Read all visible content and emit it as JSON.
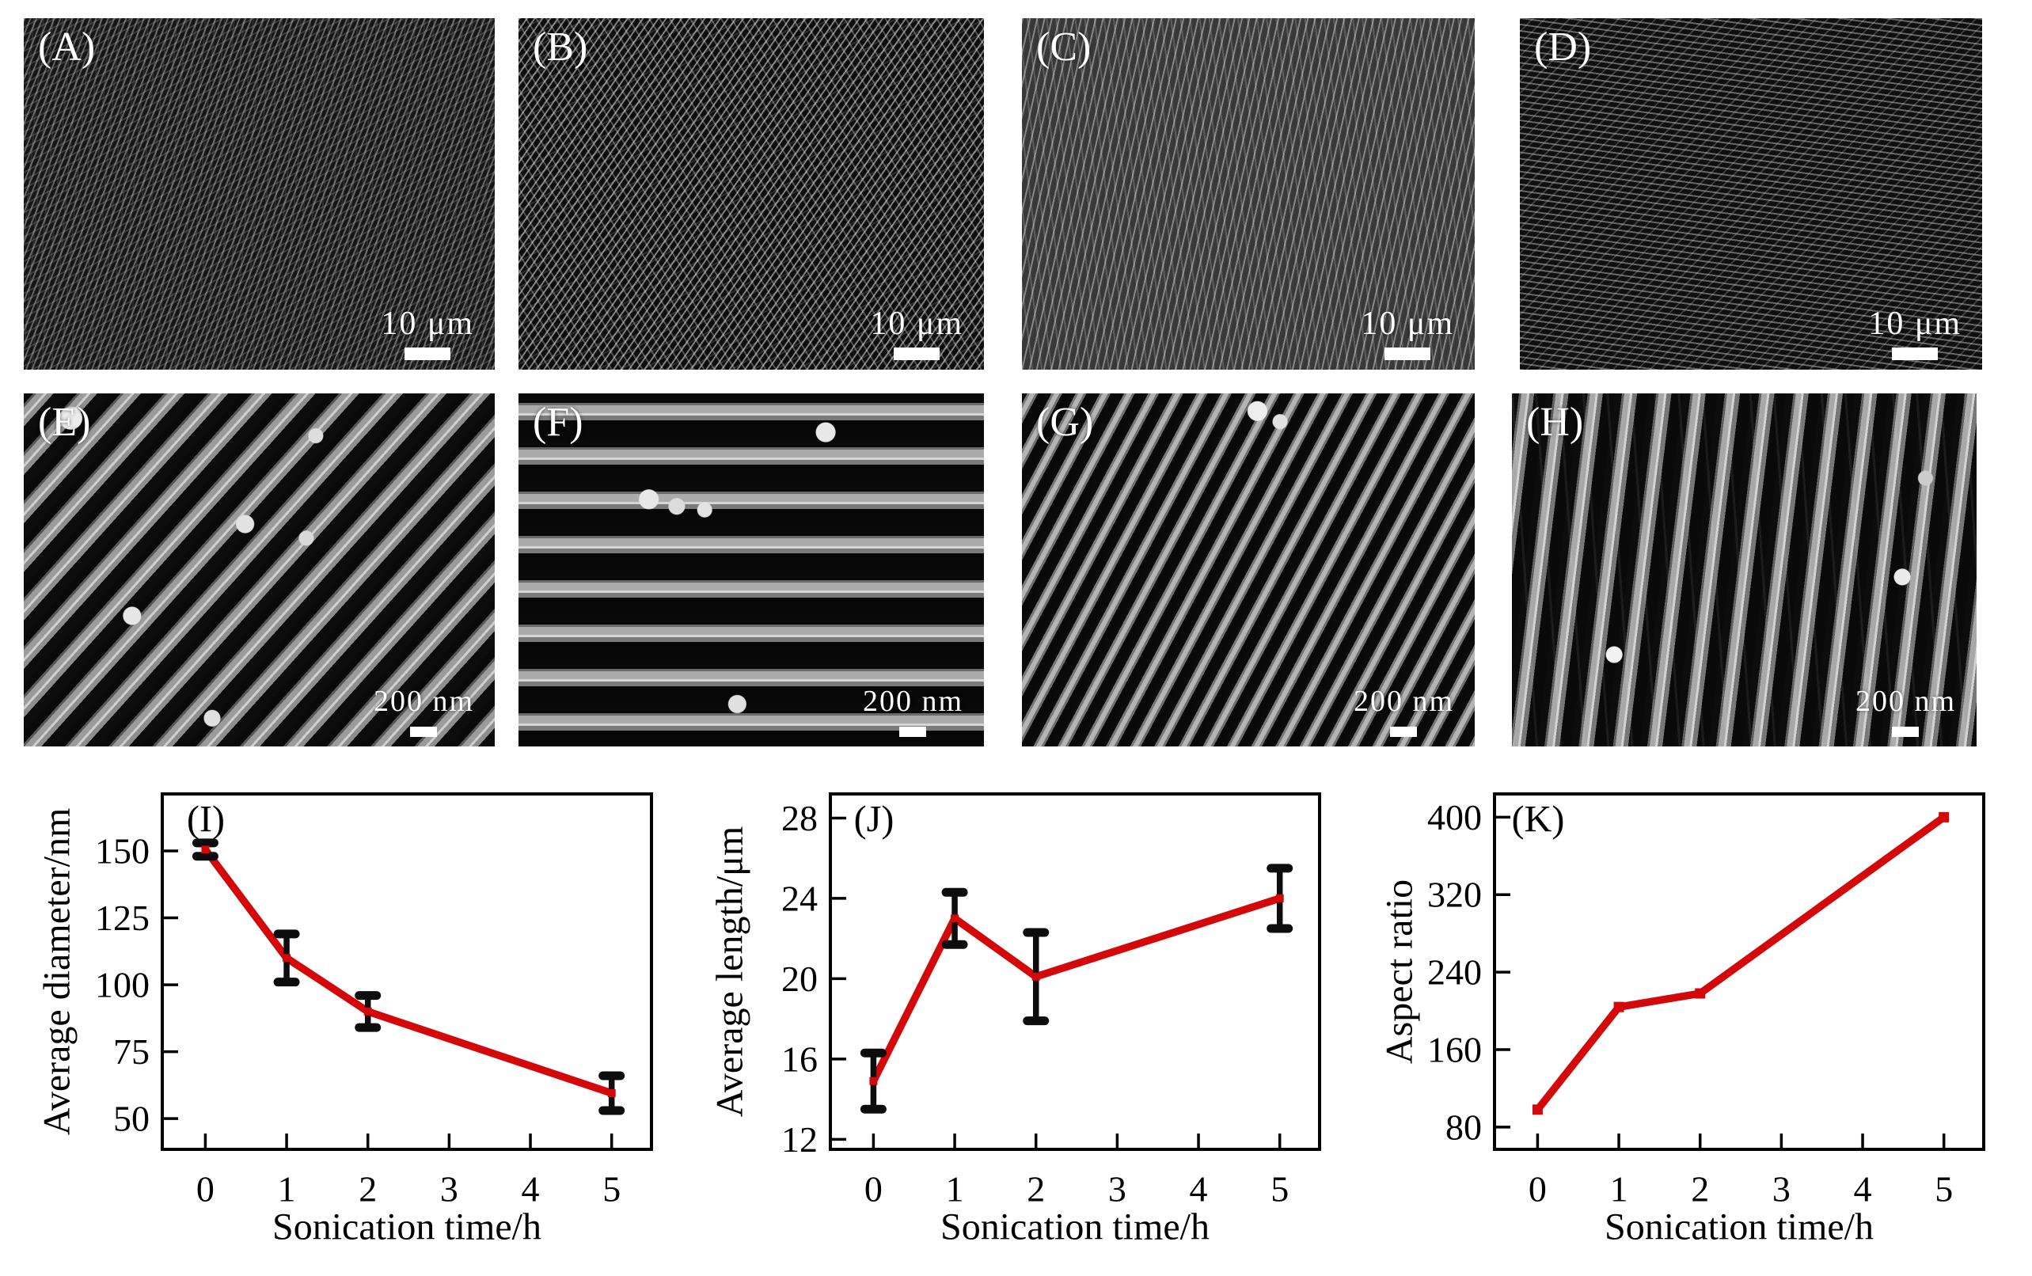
{
  "figure": {
    "background": "#ffffff",
    "sem_panels": [
      {
        "label": "(A)",
        "scale_text": "10 μm"
      },
      {
        "label": "(B)",
        "scale_text": "10 μm"
      },
      {
        "label": "(C)",
        "scale_text": "10 μm"
      },
      {
        "label": "(D)",
        "scale_text": "10 μm"
      },
      {
        "label": "(E)",
        "scale_text": "200 nm"
      },
      {
        "label": "(F)",
        "scale_text": "200 nm"
      },
      {
        "label": "(G)",
        "scale_text": "200 nm"
      },
      {
        "label": "(H)",
        "scale_text": "200 nm"
      }
    ]
  },
  "chart_data": [
    {
      "type": "line",
      "panel_label": "(I)",
      "xlabel": "Sonication time/h",
      "ylabel": "Average diameter/nm",
      "x": [
        0,
        1,
        2,
        5
      ],
      "y": [
        150.5,
        110,
        90,
        59.5
      ],
      "yerr": [
        2.5,
        9,
        6,
        6.5
      ],
      "xticks": [
        0,
        1,
        2,
        3,
        4,
        5
      ],
      "yticks": [
        50,
        75,
        100,
        125,
        150
      ],
      "xlim": [
        -0.53,
        5.49
      ],
      "ylim": [
        38.5,
        171.3
      ],
      "grid": false,
      "legend": null,
      "line_color": "#d40808",
      "error_color": "#0d0d0d",
      "marker": "square",
      "marker_size": 10
    },
    {
      "type": "line",
      "panel_label": "(J)",
      "xlabel": "Sonication time/h",
      "ylabel": "Average length/μm",
      "x": [
        0,
        1,
        2,
        5
      ],
      "y": [
        14.9,
        23,
        20.1,
        24
      ],
      "yerr": [
        1.4,
        1.3,
        2.2,
        1.5
      ],
      "xticks": [
        0,
        1,
        2,
        3,
        4,
        5
      ],
      "yticks": [
        12,
        16,
        20,
        24,
        28
      ],
      "xlim": [
        -0.53,
        5.49
      ],
      "ylim": [
        11.5,
        29.2
      ],
      "grid": false,
      "legend": null,
      "line_color": "#d40808",
      "error_color": "#0d0d0d",
      "marker": "square",
      "marker_size": 10
    },
    {
      "type": "line",
      "panel_label": "(K)",
      "xlabel": "Sonication time/h",
      "ylabel": "Aspect ratio",
      "x": [
        0,
        1,
        2,
        5
      ],
      "y": [
        98,
        204,
        218,
        400
      ],
      "yerr": null,
      "xticks": [
        0,
        1,
        2,
        3,
        4,
        5
      ],
      "yticks": [
        80,
        160,
        240,
        320,
        400
      ],
      "xlim": [
        -0.53,
        5.49
      ],
      "ylim": [
        57,
        424
      ],
      "grid": false,
      "legend": null,
      "line_color": "#d40808",
      "error_color": "#0d0d0d",
      "marker": "square",
      "marker_size": 13
    }
  ]
}
